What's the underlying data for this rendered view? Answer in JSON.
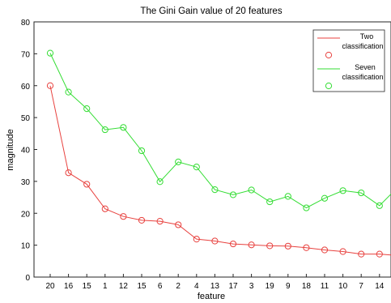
{
  "chart_data": {
    "type": "line",
    "title": "The Gini Gain value of 20 features",
    "xlabel": "feature",
    "ylabel": "magnitude",
    "categories": [
      "20",
      "16",
      "15",
      "1",
      "12",
      "15",
      "6",
      "2",
      "4",
      "13",
      "17",
      "3",
      "19",
      "9",
      "18",
      "11",
      "10",
      "7",
      "14"
    ],
    "ylim": [
      0,
      80
    ],
    "yticks": [
      0,
      10,
      20,
      30,
      40,
      50,
      60,
      70,
      80
    ],
    "grid": false,
    "legend_position": "top-right",
    "series": [
      {
        "name": "Two classification",
        "color": "#e8423f",
        "marker": "circle",
        "values": [
          60,
          32.7,
          29.1,
          21.4,
          19.0,
          17.8,
          17.5,
          16.4,
          11.9,
          11.3,
          10.4,
          10.1,
          9.8,
          9.7,
          9.2,
          8.5,
          8.0,
          7.2,
          7.2
        ],
        "tail_value": 6.9
      },
      {
        "name": "Seven classification",
        "color": "#33dd33",
        "marker": "circle",
        "values": [
          70.2,
          58.0,
          52.8,
          46.2,
          46.9,
          39.6,
          29.9,
          36.1,
          34.5,
          27.4,
          25.8,
          27.3,
          23.6,
          25.3,
          21.7,
          24.7,
          27.1,
          26.4,
          22.4
        ],
        "tail_value": 26.0
      }
    ]
  }
}
